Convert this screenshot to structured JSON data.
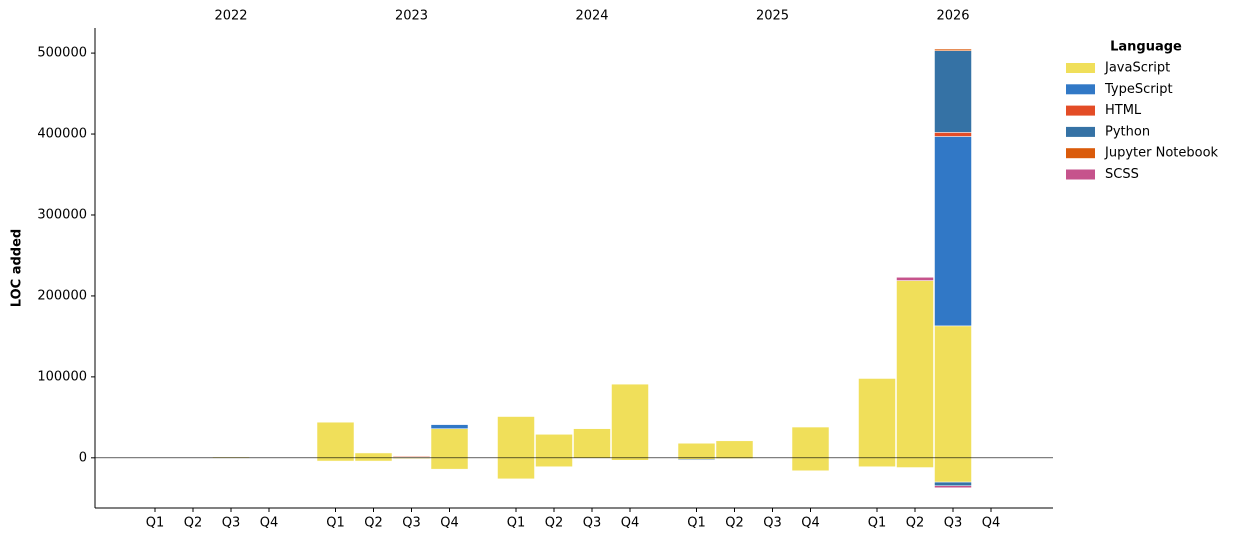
{
  "chart_data": {
    "type": "stacked_bar",
    "y_label": "LOC added",
    "legend_title": "Language",
    "legend_position": "right",
    "groups": [
      "2022",
      "2023",
      "2024",
      "2025",
      "2026"
    ],
    "categories": [
      "Q1",
      "Q2",
      "Q3",
      "Q4",
      "Q1",
      "Q2",
      "Q3",
      "Q4",
      "Q1",
      "Q2",
      "Q3",
      "Q4",
      "Q1",
      "Q2",
      "Q3",
      "Q4",
      "Q1",
      "Q2",
      "Q3",
      "Q4"
    ],
    "ylim": [
      -62000,
      531000
    ],
    "yticks": [
      0,
      100000,
      200000,
      300000,
      400000,
      500000
    ],
    "series": [
      {
        "name": "JavaScript",
        "color": "#f0df5a",
        "values": [
          0,
          0,
          1000,
          0,
          44000,
          6000,
          1000,
          36000,
          51000,
          29000,
          36000,
          91000,
          18000,
          21000,
          0,
          38000,
          98000,
          219000,
          163000,
          0
        ],
        "deleted_values": [
          0,
          0,
          0,
          0,
          -4000,
          -4000,
          -1000,
          -14000,
          -26000,
          -11000,
          0,
          -3000,
          -2000,
          -1000,
          0,
          -16000,
          -11000,
          -12000,
          -30000,
          0
        ]
      },
      {
        "name": "TypeScript",
        "color": "#3178c6",
        "values": [
          0,
          0,
          0,
          0,
          0,
          0,
          0,
          5000,
          0,
          0,
          0,
          0,
          0,
          0,
          0,
          0,
          0,
          0,
          234000,
          0
        ],
        "deleted_values": [
          0,
          0,
          0,
          0,
          0,
          0,
          0,
          0,
          0,
          0,
          0,
          0,
          0,
          0,
          0,
          0,
          0,
          0,
          0,
          0
        ]
      },
      {
        "name": "HTML",
        "color": "#e34c26",
        "values": [
          0,
          0,
          0,
          0,
          0,
          0,
          1000,
          0,
          0,
          0,
          0,
          0,
          0,
          0,
          0,
          0,
          0,
          0,
          5000,
          0
        ],
        "deleted_values": [
          0,
          0,
          0,
          0,
          0,
          0,
          0,
          0,
          0,
          0,
          0,
          0,
          0,
          0,
          0,
          0,
          0,
          0,
          0,
          0
        ]
      },
      {
        "name": "Python",
        "color": "#3572a5",
        "values": [
          0,
          0,
          0,
          0,
          0,
          0,
          0,
          0,
          0,
          0,
          0,
          0,
          0,
          0,
          0,
          0,
          0,
          0,
          101000,
          0
        ],
        "deleted_values": [
          0,
          0,
          0,
          0,
          0,
          0,
          0,
          0,
          0,
          0,
          0,
          0,
          -1000,
          0,
          0,
          0,
          0,
          0,
          -4500,
          0
        ]
      },
      {
        "name": "Jupyter Notebook",
        "color": "#da5b0b",
        "values": [
          0,
          0,
          0,
          0,
          0,
          0,
          0,
          0,
          0,
          0,
          0,
          0,
          0,
          0,
          0,
          0,
          0,
          0,
          2000,
          0
        ],
        "deleted_values": [
          0,
          0,
          0,
          0,
          0,
          0,
          0,
          0,
          0,
          0,
          0,
          0,
          0,
          0,
          0,
          0,
          0,
          0,
          0,
          0
        ]
      },
      {
        "name": "SCSS",
        "color": "#c6538c",
        "values": [
          0,
          0,
          0,
          0,
          0,
          0,
          0,
          0,
          0,
          0,
          0,
          0,
          0,
          0,
          0,
          0,
          0,
          4000,
          0,
          0
        ],
        "deleted_values": [
          0,
          0,
          0,
          0,
          0,
          0,
          0,
          0,
          0,
          0,
          0,
          0,
          0,
          0,
          0,
          0,
          0,
          0,
          -2500,
          0
        ]
      }
    ]
  }
}
